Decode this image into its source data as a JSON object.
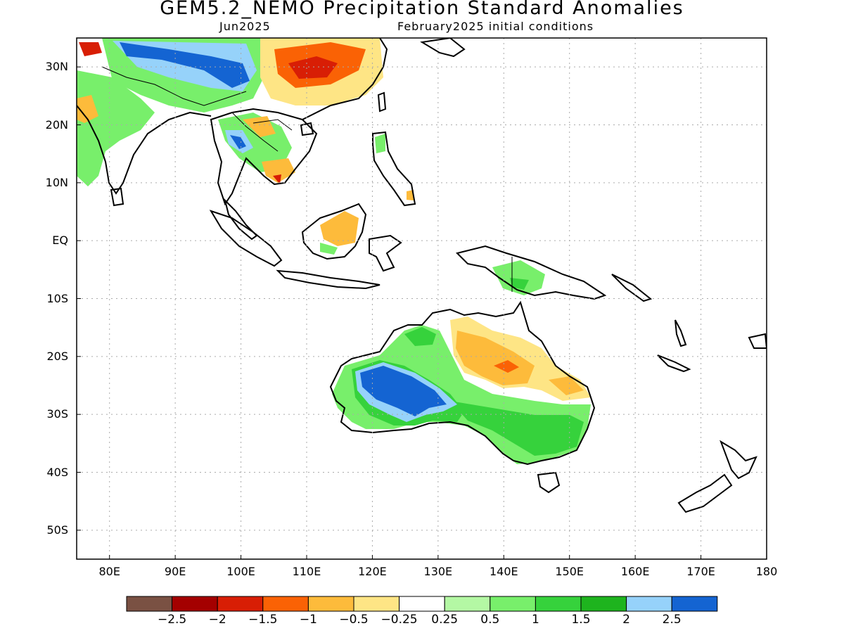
{
  "title": "GEM5.2_NEMO Precipitation Standard Anomalies",
  "subtitle_left": "Jun2025",
  "subtitle_right": "February2025 initial conditions",
  "lat_labels": [
    "30N",
    "20N",
    "10N",
    "EQ",
    "10S",
    "20S",
    "30S",
    "40S",
    "50S"
  ],
  "lon_labels": [
    "80E",
    "90E",
    "100E",
    "110E",
    "120E",
    "130E",
    "140E",
    "150E",
    "160E",
    "170E",
    "180"
  ],
  "map_extent": {
    "lon": [
      75,
      180
    ],
    "lat": [
      -55,
      35
    ]
  },
  "grid": "dotted",
  "colorbar": {
    "colors": [
      "#7a5143",
      "#a40000",
      "#d81e05",
      "#fa6205",
      "#fdbb3b",
      "#fee585",
      "#ffffff",
      "#b4f8a4",
      "#78ef6b",
      "#36d23c",
      "#1eb41e",
      "#96d2fa",
      "#1464d2"
    ],
    "labels": [
      "-2.5",
      "-2",
      "-1.5",
      "-1",
      "-0.5",
      "-0.25",
      "0.25",
      "0.5",
      "1",
      "1.5",
      "2",
      "2.5"
    ]
  },
  "anomaly_regions": [
    {
      "name": "Western Australia interior",
      "lon": [
        121,
        128
      ],
      "lat": [
        -31,
        -24
      ],
      "value": 2.5
    },
    {
      "name": "Southeast Australia",
      "lon": [
        138,
        152
      ],
      "lat": [
        -38,
        -28
      ],
      "value": 1.5
    },
    {
      "name": "Northern Australia / Top End",
      "lon": [
        124,
        132
      ],
      "lat": [
        -20,
        -15
      ],
      "value": 1.0
    },
    {
      "name": "Northeast Australia interior",
      "lon": [
        133,
        146
      ],
      "lat": [
        -27,
        -17
      ],
      "value": -0.5
    },
    {
      "name": "Central Queensland",
      "lon": [
        139,
        143
      ],
      "lat": [
        -23,
        -21
      ],
      "value": -1.0
    },
    {
      "name": "Southern China",
      "lon": [
        103,
        118
      ],
      "lat": [
        25,
        35
      ],
      "value": -1.5
    },
    {
      "name": "Tibet / Himalaya",
      "lon": [
        84,
        101
      ],
      "lat": [
        27,
        34
      ],
      "value": 2.5
    },
    {
      "name": "Indochina",
      "lon": [
        97,
        107
      ],
      "lat": [
        12,
        20
      ],
      "value": 1.0
    },
    {
      "name": "Cambodia",
      "lon": [
        104,
        107
      ],
      "lat": [
        10,
        12
      ],
      "value": -1.5
    },
    {
      "name": "Borneo",
      "lon": [
        113,
        119
      ],
      "lat": [
        0,
        5
      ],
      "value": -0.5
    },
    {
      "name": "Papua New Guinea",
      "lon": [
        142,
        148
      ],
      "lat": [
        -8,
        -4
      ],
      "value": 1.0
    },
    {
      "name": "India west coast",
      "lon": [
        75,
        78
      ],
      "lat": [
        21,
        24
      ],
      "value": -1.0
    }
  ]
}
